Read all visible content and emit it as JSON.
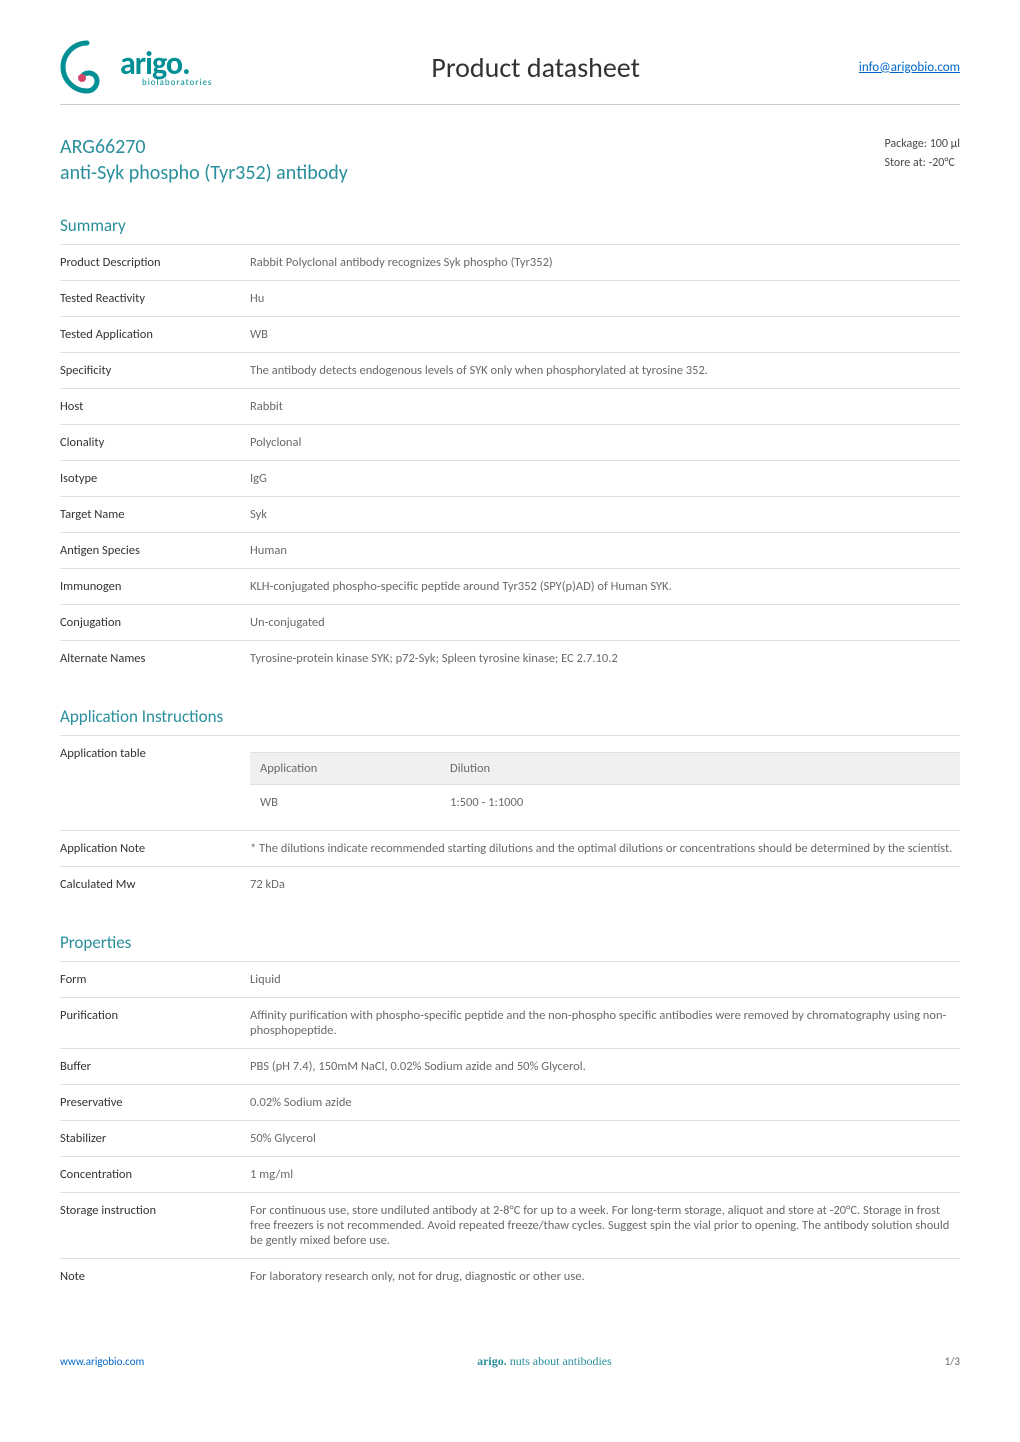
{
  "header": {
    "logo_brand": "arigo.",
    "logo_sub": "biolaboratories",
    "title": "Product datasheet",
    "link": "info@arigobio.com"
  },
  "product": {
    "code": "ARG66270",
    "title": "anti-Syk phospho (Tyr352) antibody",
    "package": "Package: 100 μl",
    "store": "Store at: -20°C"
  },
  "summary": {
    "title": "Summary",
    "rows": [
      {
        "key": "Product Description",
        "val": "Rabbit Polyclonal antibody recognizes Syk phospho (Tyr352)"
      },
      {
        "key": "Tested Reactivity",
        "val": "Hu"
      },
      {
        "key": "Tested Application",
        "val": "WB"
      },
      {
        "key": "Specificity",
        "val": "The antibody detects endogenous levels of SYK only when phosphorylated at tyrosine 352."
      },
      {
        "key": "Host",
        "val": "Rabbit"
      },
      {
        "key": "Clonality",
        "val": "Polyclonal"
      },
      {
        "key": "Isotype",
        "val": "IgG"
      },
      {
        "key": "Target Name",
        "val": "Syk"
      },
      {
        "key": "Antigen Species",
        "val": "Human"
      },
      {
        "key": "Immunogen",
        "val": "KLH-conjugated phospho-specific peptide around Tyr352 (SPY(p)AD) of Human SYK."
      },
      {
        "key": "Conjugation",
        "val": "Un-conjugated"
      },
      {
        "key": "Alternate Names",
        "val": "Tyrosine-protein kinase SYK; p72-Syk; Spleen tyrosine kinase; EC 2.7.10.2"
      }
    ]
  },
  "app_instructions": {
    "title": "Application Instructions",
    "table_head_app": "Application",
    "table_head_dil": "Dilution",
    "table_rows": [
      {
        "app": "WB",
        "dil": "1:500 - 1:1000"
      }
    ],
    "kv_rows": [
      {
        "key": "Application table",
        "val": ""
      },
      {
        "key": "Application Note",
        "val": "* The dilutions indicate recommended starting dilutions and the optimal dilutions or concentrations should be determined by the scientist."
      },
      {
        "key": "Calculated Mw",
        "val": "72 kDa"
      }
    ]
  },
  "properties": {
    "title": "Properties",
    "rows": [
      {
        "key": "Form",
        "val": "Liquid"
      },
      {
        "key": "Purification",
        "val": "Affinity purification with phospho-specific peptide and the non-phospho specific antibodies were removed by chromatography using non-phosphopeptide."
      },
      {
        "key": "Buffer",
        "val": "PBS (pH 7.4), 150mM NaCl, 0.02% Sodium azide and 50% Glycerol."
      },
      {
        "key": "Preservative",
        "val": "0.02% Sodium azide"
      },
      {
        "key": "Stabilizer",
        "val": "50% Glycerol"
      },
      {
        "key": "Concentration",
        "val": "1 mg/ml"
      },
      {
        "key": "Storage instruction",
        "val": "For continuous use, store undiluted antibody at 2-8°C for up to a week. For long-term storage, aliquot and store at -20°C. Storage in frost free freezers is not recommended. Avoid repeated freeze/thaw cycles. Suggest spin the vial prior to opening. The antibody solution should be gently mixed before use."
      },
      {
        "key": "Note",
        "val": "For laboratory research only, not for drug, diagnostic or other use."
      }
    ]
  },
  "footer": {
    "left": "www.arigobio.com",
    "center_brand": "arigo.",
    "center_text": "nuts about antibodies",
    "right": "1/3"
  },
  "colors": {
    "accent": "#2a8f9c",
    "rule": "#e0e0e0",
    "text": "#4a4a4a",
    "muted": "#6a6a6a",
    "link": "#0066cc",
    "table_head_bg": "#f0f0f0"
  }
}
